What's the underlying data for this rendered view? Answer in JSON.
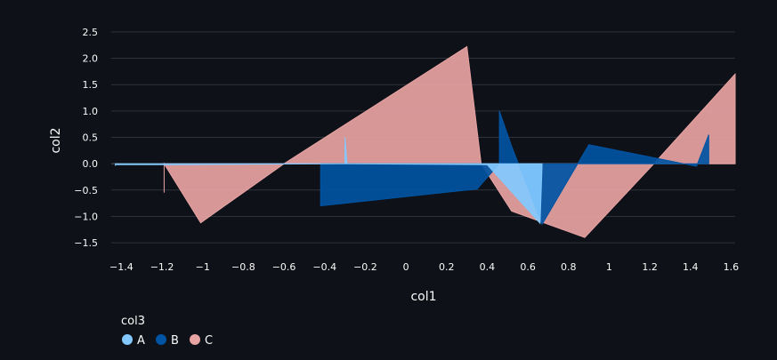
{
  "chart_data": {
    "type": "area",
    "xlabel": "col1",
    "ylabel": "col2",
    "xlim": [
      -1.45,
      1.62
    ],
    "ylim": [
      -1.65,
      2.65
    ],
    "x_ticks": [
      -1.4,
      -1.2,
      -1.0,
      -0.8,
      -0.6,
      -0.4,
      -0.2,
      0.0,
      0.2,
      0.4,
      0.6,
      0.8,
      1.0,
      1.2,
      1.4,
      1.6
    ],
    "x_tick_labels": [
      "−1.4",
      "−1.2",
      "−1",
      "−0.8",
      "−0.6",
      "−0.4",
      "−0.2",
      "0",
      "0.2",
      "0.4",
      "0.6",
      "0.8",
      "1",
      "1.2",
      "1.4",
      "1.6"
    ],
    "y_ticks": [
      2.5,
      2.0,
      1.5,
      1.0,
      0.5,
      0.0,
      -0.5,
      -1.0,
      -1.5
    ],
    "y_tick_labels": [
      "2.5",
      "2.0",
      "1.5",
      "1.0",
      "0.5",
      "0.0",
      "−0.5",
      "−1.0",
      "−1.5"
    ],
    "grid": true,
    "legend": {
      "title": "col3",
      "placement": "bottom-left"
    },
    "series": [
      {
        "name": "C",
        "color": "#e8a3a3",
        "points": [
          [
            -1.19,
            -0.55
          ],
          [
            -1.19,
            0.0
          ],
          [
            -1.01,
            -1.12
          ],
          [
            -0.6,
            0.0
          ],
          [
            0.3,
            2.22
          ],
          [
            0.37,
            0.0
          ],
          [
            0.52,
            -0.9
          ],
          [
            0.88,
            -1.4
          ],
          [
            1.22,
            0.0
          ],
          [
            1.62,
            1.7
          ],
          [
            1.62,
            0.0
          ]
        ]
      },
      {
        "name": "B",
        "color": "#0054a3",
        "points": [
          [
            -0.42,
            0.0
          ],
          [
            -0.42,
            -0.8
          ],
          [
            0.35,
            -0.48
          ],
          [
            0.46,
            0.0
          ],
          [
            0.46,
            1.0
          ],
          [
            0.52,
            0.33
          ],
          [
            0.67,
            -1.15
          ],
          [
            0.9,
            0.36
          ],
          [
            1.43,
            -0.05
          ],
          [
            1.49,
            0.55
          ],
          [
            1.49,
            0.0
          ]
        ]
      },
      {
        "name": "A",
        "color": "#83c9ff",
        "points": [
          [
            -1.43,
            -0.04
          ],
          [
            -1.43,
            -0.02
          ],
          [
            -1.19,
            -0.02
          ],
          [
            -0.3,
            0.0
          ],
          [
            -0.3,
            0.5
          ],
          [
            -0.29,
            0.0
          ],
          [
            0.4,
            -0.02
          ],
          [
            0.66,
            -1.13
          ],
          [
            0.67,
            0.0
          ]
        ]
      }
    ]
  }
}
